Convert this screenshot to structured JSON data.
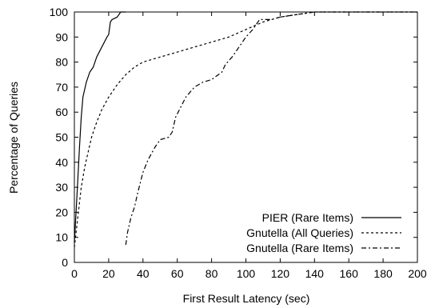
{
  "chart_data": {
    "type": "line",
    "xlabel": "First Result Latency (sec)",
    "ylabel": "Percentage of Queries",
    "xlim": [
      0,
      200
    ],
    "ylim": [
      0,
      100
    ],
    "xticks": [
      "0",
      "20",
      "40",
      "60",
      "80",
      "100",
      "120",
      "140",
      "160",
      "180",
      "200"
    ],
    "yticks": [
      "0",
      "10",
      "20",
      "30",
      "40",
      "50",
      "60",
      "70",
      "80",
      "90",
      "100"
    ],
    "grid": false,
    "legend_position": "bottom-right",
    "series": [
      {
        "name": "PIER (Rare Items)",
        "style": "solid",
        "points": [
          [
            0,
            8
          ],
          [
            1,
            20
          ],
          [
            2,
            33
          ],
          [
            3,
            46
          ],
          [
            4,
            58
          ],
          [
            5,
            66
          ],
          [
            7,
            72
          ],
          [
            9,
            76
          ],
          [
            11,
            78
          ],
          [
            13,
            82
          ],
          [
            16,
            86
          ],
          [
            19,
            90
          ],
          [
            20,
            91
          ],
          [
            21,
            96
          ],
          [
            22,
            97
          ],
          [
            25,
            98
          ],
          [
            27,
            100
          ],
          [
            30,
            100
          ]
        ]
      },
      {
        "name": "Gnutella (All Queries)",
        "style": "dotted",
        "points": [
          [
            0,
            6
          ],
          [
            2,
            18
          ],
          [
            4,
            30
          ],
          [
            6,
            38
          ],
          [
            8,
            44
          ],
          [
            10,
            50
          ],
          [
            13,
            56
          ],
          [
            16,
            61
          ],
          [
            20,
            66
          ],
          [
            25,
            71
          ],
          [
            30,
            75
          ],
          [
            35,
            78
          ],
          [
            40,
            80
          ],
          [
            50,
            82
          ],
          [
            60,
            84
          ],
          [
            70,
            86
          ],
          [
            80,
            88
          ],
          [
            90,
            90
          ],
          [
            100,
            93
          ],
          [
            110,
            96
          ],
          [
            120,
            98
          ],
          [
            130,
            99
          ],
          [
            140,
            100
          ],
          [
            200,
            100
          ]
        ]
      },
      {
        "name": "Gnutella (Rare Items)",
        "style": "dashdot",
        "points": [
          [
            30,
            7
          ],
          [
            31,
            12
          ],
          [
            33,
            18
          ],
          [
            35,
            22
          ],
          [
            37,
            28
          ],
          [
            40,
            36
          ],
          [
            43,
            41
          ],
          [
            47,
            46
          ],
          [
            50,
            49
          ],
          [
            55,
            50
          ],
          [
            57,
            52
          ],
          [
            59,
            58
          ],
          [
            62,
            62
          ],
          [
            65,
            66
          ],
          [
            70,
            70
          ],
          [
            75,
            72
          ],
          [
            80,
            73
          ],
          [
            86,
            76
          ],
          [
            88,
            79
          ],
          [
            92,
            82
          ],
          [
            96,
            86
          ],
          [
            100,
            90
          ],
          [
            104,
            93
          ],
          [
            108,
            97
          ],
          [
            115,
            97
          ],
          [
            120,
            98
          ],
          [
            130,
            99
          ],
          [
            140,
            100
          ],
          [
            200,
            100
          ]
        ]
      }
    ]
  }
}
